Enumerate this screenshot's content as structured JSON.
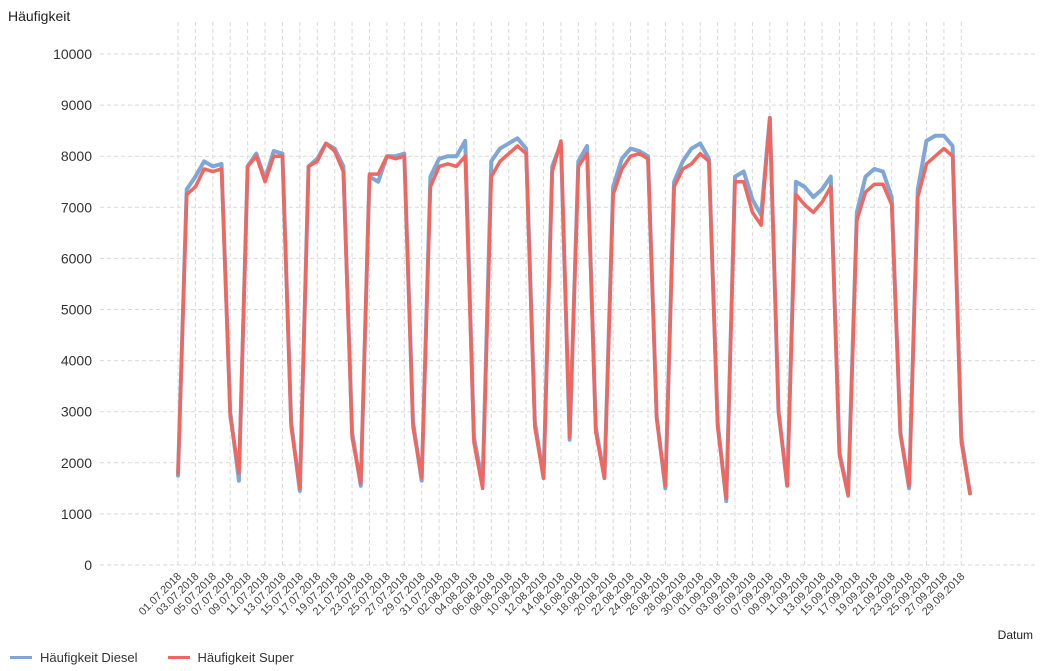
{
  "chart_data": {
    "type": "line",
    "ylabel": "Häufigkeit",
    "xlabel": "Datum",
    "ylim": [
      0,
      10000
    ],
    "yticks": [
      0,
      1000,
      2000,
      3000,
      4000,
      5000,
      6000,
      7000,
      8000,
      9000,
      10000
    ],
    "grid": true,
    "legend_position": "bottom-left",
    "colors": {
      "diesel": "#7ea6d6",
      "super": "#f0675f",
      "grid": "#d9d9d9"
    },
    "x": [
      "01.07.2018",
      "02.07.2018",
      "03.07.2018",
      "04.07.2018",
      "05.07.2018",
      "06.07.2018",
      "07.07.2018",
      "08.07.2018",
      "09.07.2018",
      "10.07.2018",
      "11.07.2018",
      "12.07.2018",
      "13.07.2018",
      "14.07.2018",
      "15.07.2018",
      "16.07.2018",
      "17.07.2018",
      "18.07.2018",
      "19.07.2018",
      "20.07.2018",
      "21.07.2018",
      "22.07.2018",
      "23.07.2018",
      "24.07.2018",
      "25.07.2018",
      "26.07.2018",
      "27.07.2018",
      "28.07.2018",
      "29.07.2018",
      "30.07.2018",
      "31.07.2018",
      "01.08.2018",
      "02.08.2018",
      "03.08.2018",
      "04.08.2018",
      "05.08.2018",
      "06.08.2018",
      "07.08.2018",
      "08.08.2018",
      "09.08.2018",
      "10.08.2018",
      "11.08.2018",
      "12.08.2018",
      "13.08.2018",
      "14.08.2018",
      "15.08.2018",
      "16.08.2018",
      "17.08.2018",
      "18.08.2018",
      "19.08.2018",
      "20.08.2018",
      "21.08.2018",
      "22.08.2018",
      "23.08.2018",
      "24.08.2018",
      "25.08.2018",
      "26.08.2018",
      "27.08.2018",
      "28.08.2018",
      "29.08.2018",
      "30.08.2018",
      "31.08.2018",
      "01.09.2018",
      "02.09.2018",
      "03.09.2018",
      "04.09.2018",
      "05.09.2018",
      "06.09.2018",
      "07.09.2018",
      "08.09.2018",
      "09.09.2018",
      "10.09.2018",
      "11.09.2018",
      "12.09.2018",
      "13.09.2018",
      "14.09.2018",
      "15.09.2018",
      "16.09.2018",
      "17.09.2018",
      "18.09.2018",
      "19.09.2018",
      "20.09.2018",
      "21.09.2018",
      "22.09.2018",
      "23.09.2018",
      "24.09.2018",
      "25.09.2018",
      "26.09.2018",
      "27.09.2018",
      "28.09.2018",
      "29.09.2018",
      "30.09.2018"
    ],
    "x_tick_labels": [
      "01.07.2018",
      "03.07.2018",
      "05.07.2018",
      "07.07.2018",
      "09.07.2018",
      "11.07.2018",
      "13.07.2018",
      "15.07.2018",
      "17.07.2018",
      "19.07.2018",
      "21.07.2018",
      "23.07.2018",
      "25.07.2018",
      "27.07.2018",
      "29.07.2018",
      "31.07.2018",
      "02.08.2018",
      "04.08.2018",
      "06.08.2018",
      "08.08.2018",
      "10.08.2018",
      "12.08.2018",
      "14.08.2018",
      "16.08.2018",
      "18.08.2018",
      "20.08.2018",
      "22.08.2018",
      "24.08.2018",
      "26.08.2018",
      "28.08.2018",
      "30.08.2018",
      "01.09.2018",
      "03.09.2018",
      "05.09.2018",
      "07.09.2018",
      "09.09.2018",
      "11.09.2018",
      "13.09.2018",
      "15.09.2018",
      "17.09.2018",
      "19.09.2018",
      "21.09.2018",
      "23.09.2018",
      "25.09.2018",
      "27.09.2018",
      "29.09.2018"
    ],
    "series": [
      {
        "name": "Häufigkeit Diesel",
        "values": [
          1750,
          7350,
          7600,
          7900,
          7800,
          7850,
          3000,
          1650,
          7800,
          8050,
          7550,
          8100,
          8050,
          2800,
          1450,
          7800,
          7950,
          8250,
          8150,
          7800,
          2600,
          1550,
          7600,
          7500,
          8000,
          8000,
          8050,
          2800,
          1650,
          7600,
          7950,
          8000,
          8000,
          8300,
          2500,
          1600,
          7900,
          8150,
          8250,
          8350,
          8150,
          2800,
          1700,
          7800,
          8250,
          2450,
          7900,
          8200,
          2700,
          1700,
          7400,
          7950,
          8150,
          8100,
          8000,
          2900,
          1500,
          7500,
          7900,
          8150,
          8250,
          7950,
          2800,
          1250,
          7600,
          7700,
          7150,
          6850,
          8750,
          3000,
          1550,
          7500,
          7400,
          7200,
          7350,
          7600,
          2200,
          1400,
          6900,
          7600,
          7750,
          7700,
          7200,
          2600,
          1500,
          7350,
          8300,
          8400,
          8400,
          8200,
          2500,
          1400
        ]
      },
      {
        "name": "Häufigkeit Super",
        "values": [
          1800,
          7250,
          7400,
          7750,
          7700,
          7750,
          2900,
          1800,
          7800,
          8000,
          7500,
          8000,
          8000,
          2700,
          1500,
          7800,
          7900,
          8250,
          8100,
          7700,
          2500,
          1600,
          7650,
          7650,
          8000,
          7950,
          8000,
          2700,
          1700,
          7400,
          7800,
          7850,
          7800,
          8000,
          2400,
          1500,
          7600,
          7900,
          8050,
          8200,
          8050,
          2700,
          1700,
          7700,
          8300,
          2500,
          7800,
          8050,
          2600,
          1700,
          7250,
          7750,
          8000,
          8050,
          7950,
          2850,
          1550,
          7400,
          7750,
          7850,
          8050,
          7900,
          2700,
          1300,
          7500,
          7500,
          6900,
          6650,
          8750,
          3000,
          1550,
          7250,
          7050,
          6900,
          7100,
          7400,
          2150,
          1350,
          6750,
          7300,
          7450,
          7450,
          7050,
          2550,
          1550,
          7200,
          7850,
          8000,
          8150,
          8000,
          2400,
          1400
        ]
      }
    ]
  }
}
